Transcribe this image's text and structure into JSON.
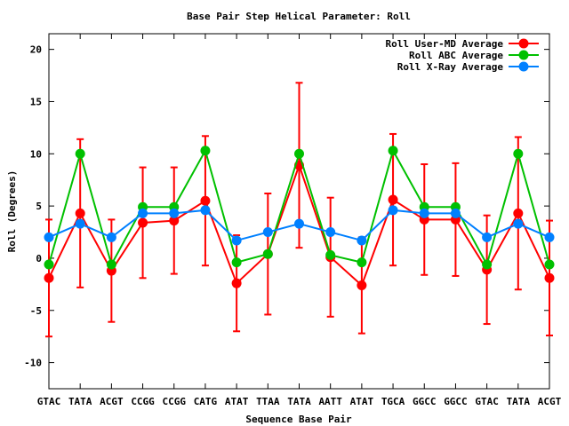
{
  "chart_data": {
    "type": "line",
    "title": "Base Pair Step Helical Parameter: Roll",
    "xlabel": "Sequence Base Pair",
    "ylabel": "Roll (Degrees)",
    "ylim": [
      -12.5,
      21.5
    ],
    "yticks": [
      -10,
      -5,
      0,
      5,
      10,
      15,
      20
    ],
    "grid": false,
    "legend_position": "top-right",
    "categories": [
      "GTAC",
      "TATA",
      "ACGT",
      "CCGG",
      "CCGG",
      "CATG",
      "ATAT",
      "TTAA",
      "TATA",
      "AATT",
      "ATAT",
      "TGCA",
      "GGCC",
      "GGCC",
      "GTAC",
      "TATA",
      "ACGT"
    ],
    "series": [
      {
        "name": "Roll User-MD Average",
        "color": "#ff0000",
        "values": [
          -1.9,
          4.3,
          -1.2,
          3.4,
          3.6,
          5.5,
          -2.4,
          0.4,
          8.9,
          0.1,
          -2.6,
          5.6,
          3.7,
          3.7,
          -1.1,
          4.3,
          -1.9
        ],
        "errors": [
          5.6,
          7.1,
          4.9,
          5.3,
          5.1,
          6.2,
          4.6,
          5.8,
          7.9,
          5.7,
          4.6,
          6.3,
          5.3,
          5.4,
          5.2,
          7.3,
          5.5
        ]
      },
      {
        "name": "Roll ABC Average",
        "color": "#00c000",
        "values": [
          -0.6,
          10.0,
          -0.6,
          4.9,
          4.9,
          10.3,
          -0.4,
          0.4,
          10.0,
          0.3,
          -0.4,
          10.3,
          4.9,
          4.9,
          -0.6,
          10.0,
          -0.6
        ]
      },
      {
        "name": "Roll X-Ray Average",
        "color": "#0080ff",
        "values": [
          2.0,
          3.3,
          2.0,
          4.3,
          4.3,
          4.6,
          1.7,
          2.5,
          3.3,
          2.5,
          1.7,
          4.6,
          4.3,
          4.3,
          2.0,
          3.3,
          2.0
        ]
      }
    ]
  }
}
